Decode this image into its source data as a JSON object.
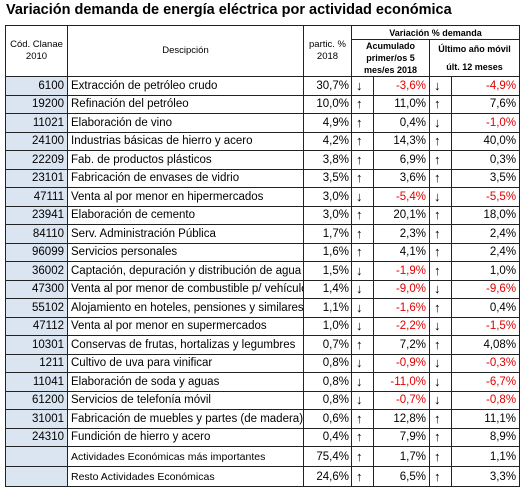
{
  "title": "Variación demanda de energía eléctrica por actividad económica",
  "headers": {
    "code": "Cód. Clanae 2010",
    "desc": "Descipción",
    "partic": "partic. % 2018",
    "group": "Variación % demanda",
    "acum": "Acumulado primer/os 5 mes/es 2018",
    "last": "Último año móvil",
    "last_sub": "últ. 12 meses"
  },
  "rows": [
    {
      "code": "6100",
      "desc": "Extracción de petróleo crudo",
      "pct": "30,7%",
      "a1": "↓",
      "v1": "-3,6%",
      "n1": true,
      "a2": "↓",
      "v2": "-4,9%",
      "n2": true
    },
    {
      "code": "19200",
      "desc": "Refinación del petróleo",
      "pct": "10,0%",
      "a1": "↑",
      "v1": "11,0%",
      "n1": false,
      "a2": "↑",
      "v2": "7,6%",
      "n2": false
    },
    {
      "code": "11021",
      "desc": "Elaboración de vino",
      "pct": "4,9%",
      "a1": "↑",
      "v1": "0,4%",
      "n1": false,
      "a2": "↓",
      "v2": "-1,0%",
      "n2": true
    },
    {
      "code": "24100",
      "desc": "Industrias básicas de hierro y acero",
      "pct": "4,2%",
      "a1": "↑",
      "v1": "14,3%",
      "n1": false,
      "a2": "↑",
      "v2": "40,0%",
      "n2": false
    },
    {
      "code": "22209",
      "desc": "Fab. de productos plásticos",
      "pct": "3,8%",
      "a1": "↑",
      "v1": "6,9%",
      "n1": false,
      "a2": "↑",
      "v2": "0,3%",
      "n2": false
    },
    {
      "code": "23101",
      "desc": "Fabricación de envases de vidrio",
      "pct": "3,5%",
      "a1": "↑",
      "v1": "3,6%",
      "n1": false,
      "a2": "↑",
      "v2": "3,5%",
      "n2": false
    },
    {
      "code": "47111",
      "desc": "Venta al por menor en hipermercados",
      "pct": "3,0%",
      "a1": "↓",
      "v1": "-5,4%",
      "n1": true,
      "a2": "↓",
      "v2": "-5,5%",
      "n2": true
    },
    {
      "code": "23941",
      "desc": "Elaboración de cemento",
      "pct": "3,0%",
      "a1": "↑",
      "v1": "20,1%",
      "n1": false,
      "a2": "↑",
      "v2": "18,0%",
      "n2": false
    },
    {
      "code": "84110",
      "desc": "Serv. Administración Pública",
      "pct": "1,7%",
      "a1": "↑",
      "v1": "2,3%",
      "n1": false,
      "a2": "↑",
      "v2": "2,4%",
      "n2": false
    },
    {
      "code": "96099",
      "desc": "Servicios personales",
      "pct": "1,6%",
      "a1": "↑",
      "v1": "4,1%",
      "n1": false,
      "a2": "↑",
      "v2": "2,4%",
      "n2": false
    },
    {
      "code": "36002",
      "desc": "Captación, depuración y distribución de agua",
      "pct": "1,5%",
      "a1": "↓",
      "v1": "-1,9%",
      "n1": true,
      "a2": "↑",
      "v2": "1,0%",
      "n2": false
    },
    {
      "code": "47300",
      "desc": "Venta al por menor de combustible p/ vehículos",
      "pct": "1,4%",
      "a1": "↓",
      "v1": "-9,0%",
      "n1": true,
      "a2": "↓",
      "v2": "-9,6%",
      "n2": true
    },
    {
      "code": "55102",
      "desc": "Alojamiento en hoteles, pensiones y similares",
      "pct": "1,1%",
      "a1": "↓",
      "v1": "-1,6%",
      "n1": true,
      "a2": "↑",
      "v2": "0,4%",
      "n2": false
    },
    {
      "code": "47112",
      "desc": "Venta al por menor en supermercados",
      "pct": "1,0%",
      "a1": "↓",
      "v1": "-2,2%",
      "n1": true,
      "a2": "↓",
      "v2": "-1,5%",
      "n2": true
    },
    {
      "code": "10301",
      "desc": "Conservas de frutas, hortalizas y legumbres",
      "pct": "0,7%",
      "a1": "↑",
      "v1": "7,2%",
      "n1": false,
      "a2": "↑",
      "v2": "4,08%",
      "n2": false
    },
    {
      "code": "1211",
      "desc": "Cultivo de uva para vinificar",
      "pct": "0,8%",
      "a1": "↓",
      "v1": "-0,9%",
      "n1": true,
      "a2": "↓",
      "v2": "-0,3%",
      "n2": true
    },
    {
      "code": "11041",
      "desc": "Elaboración de soda y aguas",
      "pct": "0,8%",
      "a1": "↓",
      "v1": "-11,0%",
      "n1": true,
      "a2": "↓",
      "v2": "-6,7%",
      "n2": true
    },
    {
      "code": "61200",
      "desc": "Servicios de telefonía móvil",
      "pct": "0,8%",
      "a1": "↓",
      "v1": "-0,7%",
      "n1": true,
      "a2": "↓",
      "v2": "-0,8%",
      "n2": true
    },
    {
      "code": "31001",
      "desc": "Fabricación de muebles y partes (de madera)",
      "pct": "0,6%",
      "a1": "↑",
      "v1": "12,8%",
      "n1": false,
      "a2": "↑",
      "v2": "11,1%",
      "n2": false
    },
    {
      "code": "24310",
      "desc": "Fundición de hierro y acero",
      "pct": "0,4%",
      "a1": "↑",
      "v1": "7,9%",
      "n1": false,
      "a2": "↑",
      "v2": "8,9%",
      "n2": false
    }
  ],
  "summary": [
    {
      "desc": "Actividades Económicas más importantes",
      "pct": "75,4%",
      "a1": "↑",
      "v1": "1,7%",
      "a2": "↑",
      "v2": "1,1%"
    },
    {
      "desc": "Resto Actividades Económicas",
      "pct": "24,6%",
      "a1": "↑",
      "v1": "6,5%",
      "a2": "↑",
      "v2": "3,3%"
    }
  ]
}
